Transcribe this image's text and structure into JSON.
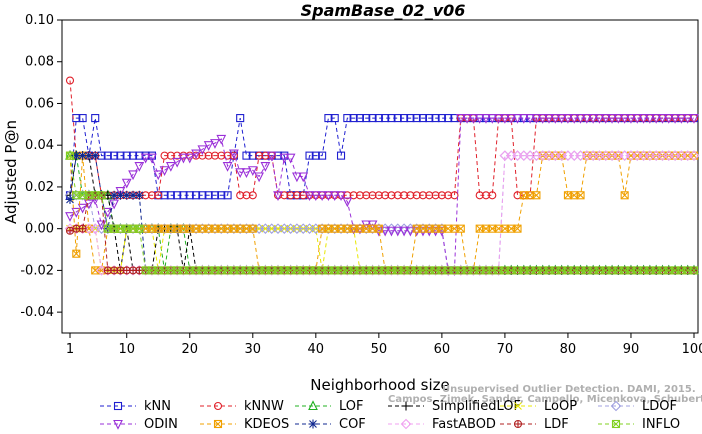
{
  "chart_data": {
    "type": "line",
    "title": "SpamBase_02_v06",
    "xlabel": "Neighborhood size",
    "ylabel": "Adjusted P@n",
    "xlim": [
      0,
      100
    ],
    "ylim": [
      -0.05,
      0.1
    ],
    "xticks": [
      1,
      10,
      20,
      30,
      40,
      50,
      60,
      70,
      80,
      90,
      100
    ],
    "yticks": [
      -0.04,
      -0.02,
      0.0,
      0.02,
      0.04,
      0.06,
      0.08,
      0.1
    ],
    "ytick_labels": [
      "-0.04",
      "-0.02",
      "0.00",
      "0.02",
      "0.04",
      "0.06",
      "0.08",
      "0.10"
    ],
    "grid": false,
    "legend_position": "bottom",
    "series": [
      {
        "name": "kNN",
        "color": "#1f1fd0",
        "marker": "square",
        "points": [
          [
            1,
            0.016
          ],
          [
            2,
            0.053
          ],
          [
            3,
            0.053
          ],
          [
            4,
            0.035
          ],
          [
            5,
            0.053
          ],
          [
            6,
            0.035
          ],
          [
            10,
            0.035
          ],
          [
            14,
            0.035
          ],
          [
            15,
            0.016
          ],
          [
            26,
            0.016
          ],
          [
            27,
            0.035
          ],
          [
            28,
            0.053
          ],
          [
            29,
            0.035
          ],
          [
            34,
            0.035
          ],
          [
            35,
            0.035
          ],
          [
            36,
            0.016
          ],
          [
            38,
            0.016
          ],
          [
            39,
            0.035
          ],
          [
            41,
            0.035
          ],
          [
            42,
            0.053
          ],
          [
            43,
            0.053
          ],
          [
            44,
            0.035
          ],
          [
            45,
            0.053
          ],
          [
            100,
            0.053
          ]
        ]
      },
      {
        "name": "kNNW",
        "color": "#e0202a",
        "marker": "circle",
        "points": [
          [
            1,
            0.071
          ],
          [
            2,
            0.035
          ],
          [
            5,
            0.035
          ],
          [
            6,
            0.016
          ],
          [
            15,
            0.016
          ],
          [
            16,
            0.035
          ],
          [
            25,
            0.035
          ],
          [
            28,
            0.016
          ],
          [
            31,
            0.035
          ],
          [
            33,
            0.035
          ],
          [
            34,
            0.016
          ],
          [
            62,
            0.016
          ],
          [
            63,
            0.053
          ],
          [
            65,
            0.053
          ],
          [
            66,
            0.016
          ],
          [
            68,
            0.016
          ],
          [
            69,
            0.053
          ],
          [
            71,
            0.053
          ],
          [
            72,
            0.016
          ],
          [
            74,
            0.016
          ],
          [
            75,
            0.053
          ],
          [
            100,
            0.053
          ]
        ]
      },
      {
        "name": "LOF",
        "color": "#20b020",
        "marker": "triangle-up",
        "points": [
          [
            1,
            0.035
          ],
          [
            2,
            0.035
          ],
          [
            3,
            0.016
          ],
          [
            6,
            0.016
          ],
          [
            7,
            0.016
          ],
          [
            8,
            0.0
          ],
          [
            15,
            0.0
          ],
          [
            16,
            -0.02
          ],
          [
            17,
            0.0
          ],
          [
            19,
            0.0
          ],
          [
            20,
            -0.02
          ],
          [
            100,
            -0.02
          ]
        ]
      },
      {
        "name": "SimplifiedLOF",
        "color": "#000000",
        "marker": "plus",
        "points": [
          [
            1,
            0.016
          ],
          [
            2,
            0.035
          ],
          [
            4,
            0.035
          ],
          [
            5,
            0.016
          ],
          [
            7,
            0.016
          ],
          [
            8,
            0.0
          ],
          [
            9,
            -0.02
          ],
          [
            10,
            0.0
          ],
          [
            11,
            -0.02
          ],
          [
            14,
            -0.02
          ],
          [
            15,
            0.0
          ],
          [
            18,
            0.0
          ],
          [
            19,
            -0.02
          ],
          [
            20,
            0.0
          ],
          [
            21,
            -0.02
          ],
          [
            100,
            -0.02
          ]
        ]
      },
      {
        "name": "LoOP",
        "color": "#e8e800",
        "marker": "x",
        "points": [
          [
            1,
            0.0
          ],
          [
            4,
            0.0
          ],
          [
            5,
            0.0
          ],
          [
            6,
            -0.02
          ],
          [
            9,
            -0.02
          ],
          [
            10,
            0.0
          ],
          [
            14,
            0.0
          ],
          [
            15,
            -0.02
          ],
          [
            16,
            0.0
          ],
          [
            24,
            0.0
          ],
          [
            25,
            0.0
          ],
          [
            28,
            0.0
          ],
          [
            34,
            0.0
          ],
          [
            40,
            0.0
          ],
          [
            41,
            -0.02
          ],
          [
            42,
            0.0
          ],
          [
            46,
            0.0
          ],
          [
            47,
            -0.02
          ],
          [
            100,
            -0.02
          ]
        ]
      },
      {
        "name": "LDOF",
        "color": "#a0a0e0",
        "marker": "diamond",
        "points": [
          [
            1,
            0.016
          ],
          [
            4,
            0.016
          ],
          [
            5,
            0.0
          ],
          [
            60,
            0.0
          ],
          [
            61,
            -0.02
          ],
          [
            69,
            -0.02
          ],
          [
            70,
            0.035
          ],
          [
            100,
            0.035
          ]
        ]
      },
      {
        "name": "ODIN",
        "color": "#9a30d8",
        "marker": "triangle-down",
        "points": [
          [
            1,
            0.006
          ],
          [
            2,
            0.008
          ],
          [
            3,
            0.01
          ],
          [
            4,
            0.012
          ],
          [
            5,
            0.014
          ],
          [
            6,
            0.002
          ],
          [
            7,
            0.008
          ],
          [
            8,
            0.012
          ],
          [
            9,
            0.018
          ],
          [
            10,
            0.022
          ],
          [
            11,
            0.026
          ],
          [
            12,
            0.03
          ],
          [
            13,
            0.034
          ],
          [
            14,
            0.034
          ],
          [
            15,
            0.026
          ],
          [
            16,
            0.028
          ],
          [
            17,
            0.03
          ],
          [
            18,
            0.032
          ],
          [
            19,
            0.034
          ],
          [
            20,
            0.034
          ],
          [
            21,
            0.036
          ],
          [
            22,
            0.038
          ],
          [
            23,
            0.04
          ],
          [
            24,
            0.041
          ],
          [
            25,
            0.043
          ],
          [
            26,
            0.03
          ],
          [
            27,
            0.036
          ],
          [
            28,
            0.027
          ],
          [
            29,
            0.027
          ],
          [
            30,
            0.028
          ],
          [
            31,
            0.025
          ],
          [
            32,
            0.03
          ],
          [
            33,
            0.035
          ],
          [
            34,
            0.016
          ],
          [
            35,
            0.034
          ],
          [
            36,
            0.034
          ],
          [
            37,
            0.025
          ],
          [
            38,
            0.025
          ],
          [
            39,
            0.016
          ],
          [
            44,
            0.016
          ],
          [
            45,
            0.013
          ],
          [
            46,
            0.0
          ],
          [
            47,
            0.0
          ],
          [
            48,
            0.002
          ],
          [
            49,
            0.002
          ],
          [
            50,
            -0.001
          ],
          [
            60,
            -0.001
          ],
          [
            61,
            -0.02
          ],
          [
            62,
            -0.02
          ],
          [
            63,
            0.053
          ],
          [
            100,
            0.053
          ]
        ]
      },
      {
        "name": "KDEOS",
        "color": "#f0a000",
        "marker": "square-x",
        "points": [
          [
            1,
            0.035
          ],
          [
            2,
            -0.012
          ],
          [
            3,
            0.035
          ],
          [
            4,
            0.0
          ],
          [
            5,
            -0.02
          ],
          [
            6,
            -0.02
          ],
          [
            7,
            0.0
          ],
          [
            30,
            0.0
          ],
          [
            31,
            -0.02
          ],
          [
            40,
            -0.02
          ],
          [
            41,
            0.0
          ],
          [
            50,
            0.0
          ],
          [
            51,
            -0.02
          ],
          [
            55,
            -0.02
          ],
          [
            56,
            0.0
          ],
          [
            63,
            0.0
          ],
          [
            64,
            -0.02
          ],
          [
            66,
            0.0
          ],
          [
            72,
            0.0
          ],
          [
            73,
            0.016
          ],
          [
            75,
            0.016
          ],
          [
            76,
            0.035
          ],
          [
            79,
            0.035
          ],
          [
            80,
            0.016
          ],
          [
            82,
            0.016
          ],
          [
            83,
            0.035
          ],
          [
            88,
            0.035
          ],
          [
            89,
            0.016
          ],
          [
            90,
            0.035
          ],
          [
            100,
            0.035
          ]
        ]
      },
      {
        "name": "COF",
        "color": "#102890",
        "marker": "star",
        "points": [
          [
            1,
            0.014
          ],
          [
            2,
            0.035
          ],
          [
            3,
            0.035
          ],
          [
            4,
            0.035
          ],
          [
            5,
            0.035
          ],
          [
            6,
            0.016
          ],
          [
            7,
            0.0
          ],
          [
            8,
            0.016
          ],
          [
            9,
            0.016
          ],
          [
            10,
            0.016
          ],
          [
            11,
            0.016
          ],
          [
            12,
            0.016
          ],
          [
            13,
            -0.02
          ],
          [
            100,
            -0.02
          ]
        ]
      },
      {
        "name": "FastABOD",
        "color": "#f0a0f0",
        "marker": "diamond",
        "points": [
          [
            1,
            0.0
          ],
          [
            5,
            0.0
          ],
          [
            6,
            -0.02
          ],
          [
            60,
            -0.02
          ],
          [
            61,
            -0.02
          ],
          [
            70,
            0.035
          ],
          [
            100,
            0.035
          ]
        ]
      },
      {
        "name": "LDF",
        "color": "#b02020",
        "marker": "circle-plus",
        "points": [
          [
            1,
            -0.001
          ],
          [
            2,
            0.0
          ],
          [
            3,
            0.0
          ],
          [
            4,
            0.016
          ],
          [
            5,
            0.016
          ],
          [
            6,
            0.016
          ],
          [
            7,
            -0.02
          ],
          [
            9,
            -0.02
          ],
          [
            10,
            -0.02
          ],
          [
            11,
            -0.02
          ],
          [
            12,
            -0.02
          ],
          [
            13,
            -0.02
          ],
          [
            100,
            -0.02
          ]
        ]
      },
      {
        "name": "INFLO",
        "color": "#80d020",
        "marker": "square-x",
        "points": [
          [
            1,
            0.035
          ],
          [
            2,
            0.016
          ],
          [
            6,
            0.016
          ],
          [
            7,
            0.0
          ],
          [
            12,
            0.0
          ],
          [
            13,
            -0.02
          ],
          [
            100,
            -0.02
          ]
        ]
      }
    ],
    "watermark": "Campos, Zimek, Sander, Campello, Micenkova, Schubert, Assent, Houle",
    "watermark_line1": "Unsupervised Outlier Detection. DAMI, 2015."
  }
}
